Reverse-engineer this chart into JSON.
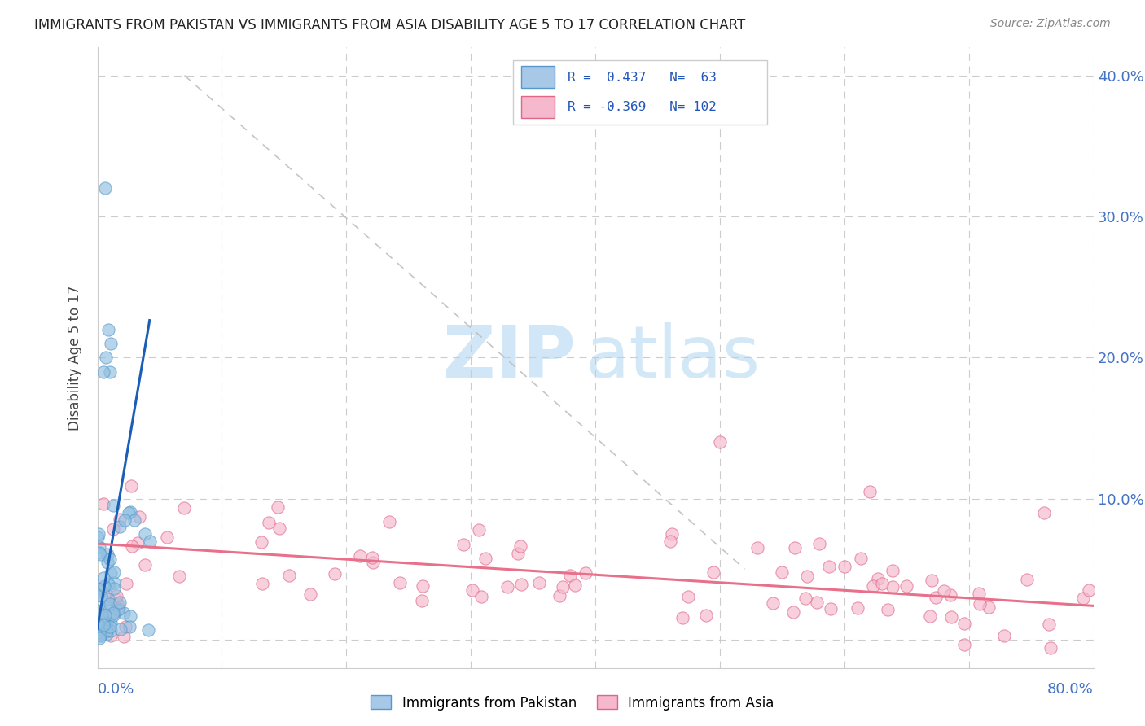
{
  "title": "IMMIGRANTS FROM PAKISTAN VS IMMIGRANTS FROM ASIA DISABILITY AGE 5 TO 17 CORRELATION CHART",
  "source": "Source: ZipAtlas.com",
  "ylabel": "Disability Age 5 to 17",
  "xlim": [
    0.0,
    0.8
  ],
  "ylim": [
    -0.02,
    0.42
  ],
  "yticks": [
    0.0,
    0.1,
    0.2,
    0.3,
    0.4
  ],
  "ytick_right_labels": [
    "",
    "10.0%",
    "20.0%",
    "30.0%",
    "40.0%"
  ],
  "series1_color": "#90bfe0",
  "series1_edge": "#5599cc",
  "series2_color": "#f5b8cc",
  "series2_edge": "#e06688",
  "regression1_color": "#1a5eb8",
  "regression2_color": "#e8708a",
  "trend_dashed_color": "#bbbbbb",
  "background_color": "#ffffff",
  "grid_color": "#cccccc",
  "tick_color": "#4472c4",
  "title_color": "#222222",
  "source_color": "#888888",
  "legend_r1": "R =  0.437   N=  63",
  "legend_r2": "R = -0.369   N= 102",
  "legend_color": "#2255bb",
  "watermark_color": "#cce4f5"
}
